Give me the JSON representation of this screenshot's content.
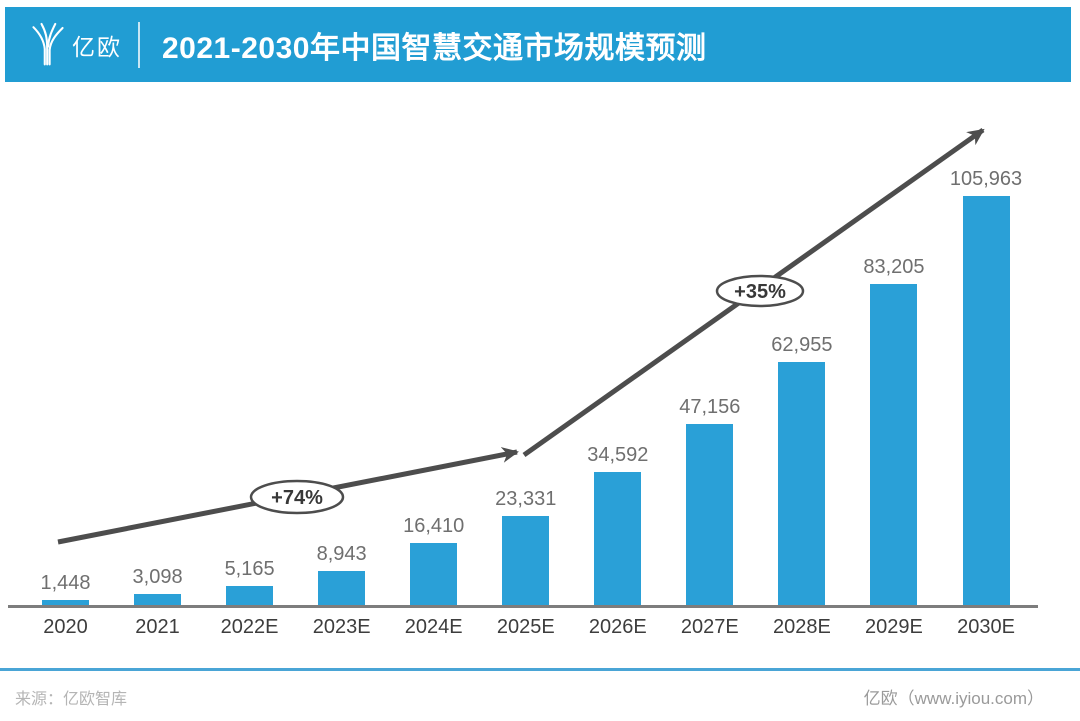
{
  "header": {
    "logo": {
      "text": "亿欧"
    },
    "title": "2021-2030年中国智慧交通市场规模预测"
  },
  "chart_data": {
    "type": "bar",
    "title": "2021-2030年中国智慧交通市场规模预测",
    "categories": [
      "2020",
      "2021",
      "2022E",
      "2023E",
      "2024E",
      "2025E",
      "2026E",
      "2027E",
      "2028E",
      "2029E",
      "2030E"
    ],
    "values": [
      1448,
      3098,
      5165,
      8943,
      16410,
      23331,
      34592,
      47156,
      62955,
      83205,
      105963
    ],
    "value_labels": [
      "1,448",
      "3,098",
      "5,165",
      "8,943",
      "16,410",
      "23,331",
      "34,592",
      "47,156",
      "62,955",
      "83,205",
      "105,963"
    ],
    "xlabel": "",
    "ylabel": "",
    "ylim": [
      0,
      110000
    ],
    "grid": false,
    "legend": false,
    "trend": {
      "annotations": [
        {
          "label": "+74%",
          "from": "2020",
          "to": "2025E"
        },
        {
          "label": "+35%",
          "from": "2025E",
          "to": "2030E"
        }
      ]
    }
  },
  "footer": {
    "source": "来源：亿欧智库",
    "brand": "亿欧（www.iyiou.com）"
  },
  "colors": {
    "header_bg": "#219dd3",
    "bar": "#2aa0d7",
    "arrow": "#4d4d4d",
    "value_label": "#6f6f6f",
    "category_label": "#3d3d3d",
    "axis": "#7d7d7d",
    "footer_line": "#4aa5d6"
  }
}
